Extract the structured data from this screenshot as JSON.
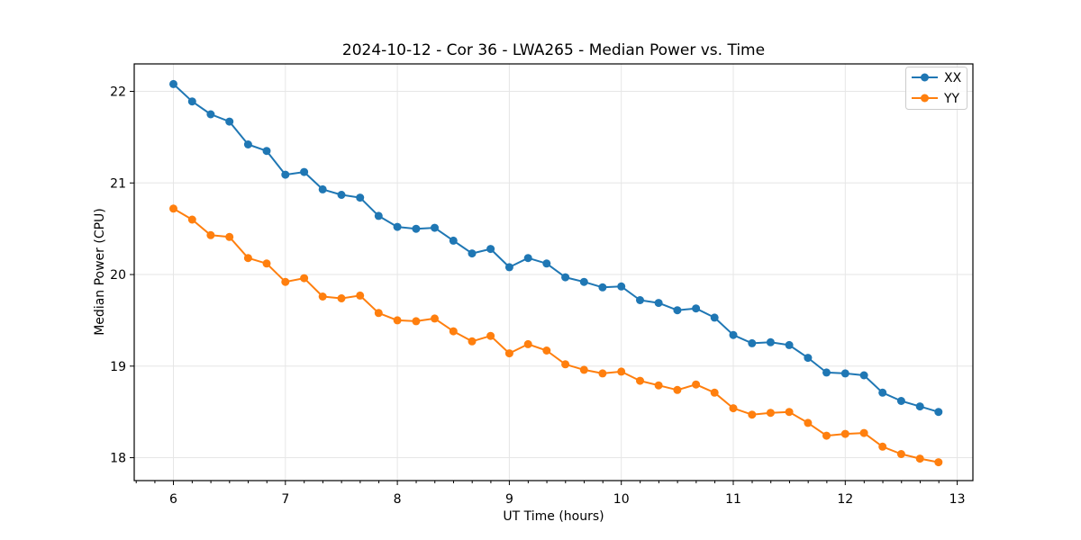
{
  "chart_data": {
    "type": "line",
    "title": "2024-10-12 - Cor 36 - LWA265 - Median Power vs. Time",
    "xlabel": "UT Time (hours)",
    "ylabel": "Median Power (CPU)",
    "xlim": [
      5.65,
      13.14
    ],
    "ylim": [
      17.75,
      22.3
    ],
    "xticks": [
      6,
      7,
      8,
      9,
      10,
      11,
      12,
      13
    ],
    "yticks": [
      18,
      19,
      20,
      21,
      22
    ],
    "x_minor_step": 0.1667,
    "grid": true,
    "grid_color": "#e6e6e6",
    "background_color": "#ffffff",
    "axis_color": "#000000",
    "legend_position": "upper right",
    "legend_labels": [
      "XX",
      "YY"
    ],
    "marker": "circle",
    "x": [
      6.0,
      6.167,
      6.333,
      6.5,
      6.667,
      6.833,
      7.0,
      7.167,
      7.333,
      7.5,
      7.667,
      7.833,
      8.0,
      8.167,
      8.333,
      8.5,
      8.667,
      8.833,
      9.0,
      9.167,
      9.333,
      9.5,
      9.667,
      9.833,
      10.0,
      10.167,
      10.333,
      10.5,
      10.667,
      10.833,
      11.0,
      11.167,
      11.333,
      11.5,
      11.667,
      11.833,
      12.0,
      12.167,
      12.333,
      12.5,
      12.667,
      12.833
    ],
    "series": [
      {
        "name": "XX",
        "color": "#1f77b4",
        "values": [
          22.08,
          21.89,
          21.75,
          21.67,
          21.42,
          21.35,
          21.09,
          21.12,
          20.93,
          20.87,
          20.84,
          20.64,
          20.52,
          20.5,
          20.51,
          20.37,
          20.23,
          20.28,
          20.08,
          20.18,
          20.12,
          19.97,
          19.92,
          19.86,
          19.87,
          19.72,
          19.69,
          19.61,
          19.63,
          19.53,
          19.34,
          19.25,
          19.26,
          19.23,
          19.09,
          18.93,
          18.92,
          18.9,
          18.71,
          18.62,
          18.56,
          18.5
        ]
      },
      {
        "name": "YY",
        "color": "#ff7f0e",
        "values": [
          20.72,
          20.6,
          20.43,
          20.41,
          20.18,
          20.12,
          19.92,
          19.96,
          19.76,
          19.74,
          19.77,
          19.58,
          19.5,
          19.49,
          19.52,
          19.38,
          19.27,
          19.33,
          19.14,
          19.24,
          19.17,
          19.02,
          18.96,
          18.92,
          18.94,
          18.84,
          18.79,
          18.74,
          18.8,
          18.71,
          18.54,
          18.47,
          18.49,
          18.5,
          18.38,
          18.24,
          18.26,
          18.27,
          18.12,
          18.04,
          17.99,
          17.95
        ]
      }
    ]
  }
}
